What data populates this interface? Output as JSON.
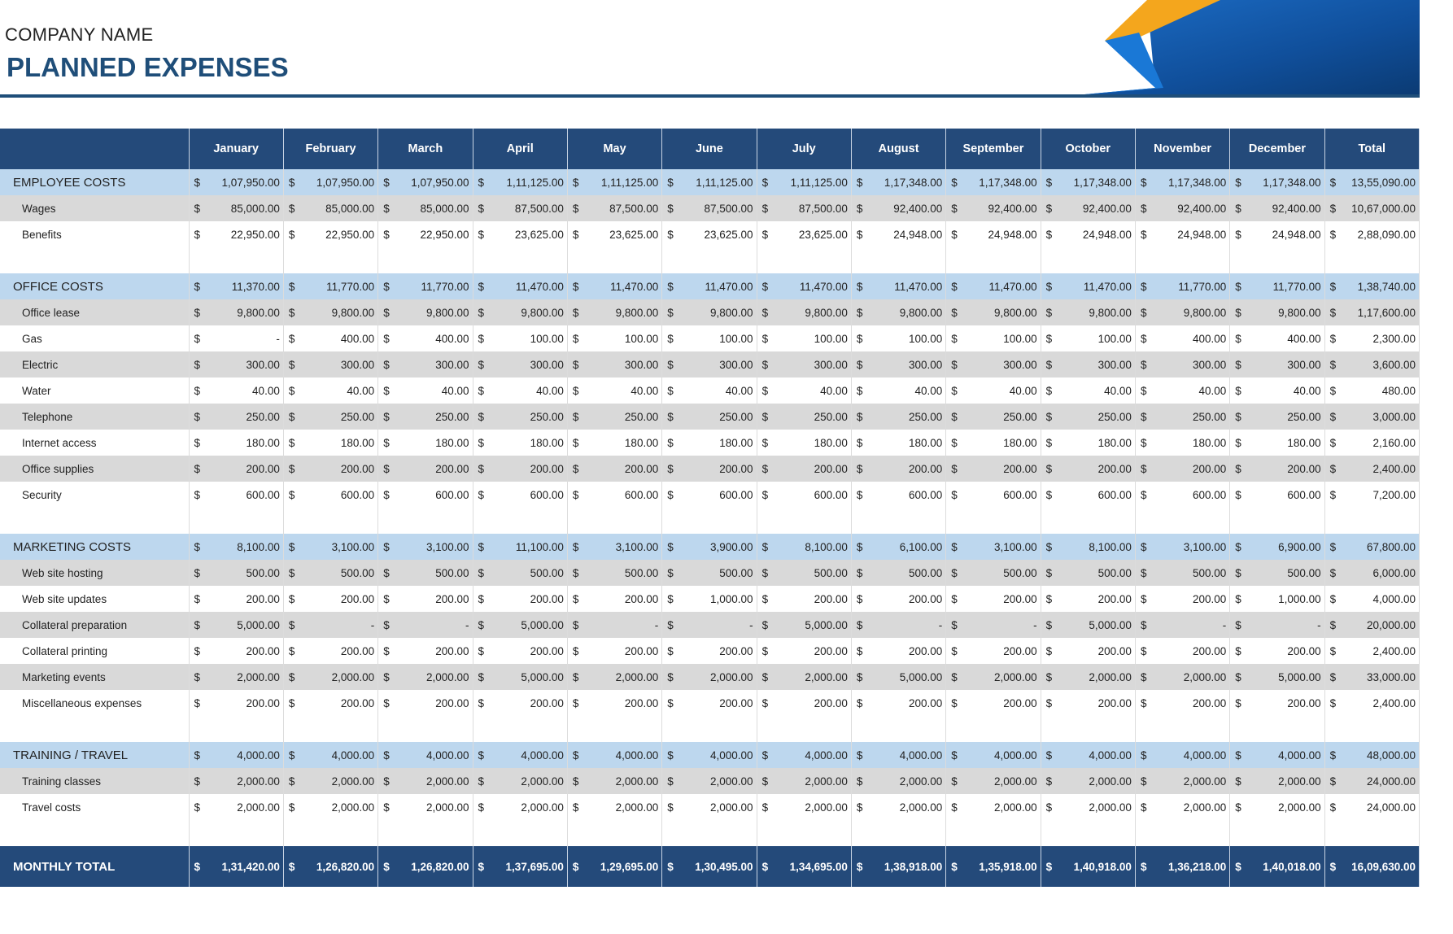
{
  "header": {
    "company": "COMPANY NAME",
    "title": "PLANNED EXPENSES"
  },
  "table": {
    "currency": "$",
    "columns": [
      "January",
      "February",
      "March",
      "April",
      "May",
      "June",
      "July",
      "August",
      "September",
      "October",
      "November",
      "December",
      "Total"
    ],
    "sections": [
      {
        "name": "EMPLOYEE COSTS",
        "values": [
          "1,07,950.00",
          "1,07,950.00",
          "1,07,950.00",
          "1,11,125.00",
          "1,11,125.00",
          "1,11,125.00",
          "1,11,125.00",
          "1,17,348.00",
          "1,17,348.00",
          "1,17,348.00",
          "1,17,348.00",
          "1,17,348.00",
          "13,55,090.00"
        ],
        "rows": [
          {
            "label": "Wages",
            "values": [
              "85,000.00",
              "85,000.00",
              "85,000.00",
              "87,500.00",
              "87,500.00",
              "87,500.00",
              "87,500.00",
              "92,400.00",
              "92,400.00",
              "92,400.00",
              "92,400.00",
              "92,400.00",
              "10,67,000.00"
            ]
          },
          {
            "label": "Benefits",
            "values": [
              "22,950.00",
              "22,950.00",
              "22,950.00",
              "23,625.00",
              "23,625.00",
              "23,625.00",
              "23,625.00",
              "24,948.00",
              "24,948.00",
              "24,948.00",
              "24,948.00",
              "24,948.00",
              "2,88,090.00"
            ]
          }
        ]
      },
      {
        "name": "OFFICE COSTS",
        "values": [
          "11,370.00",
          "11,770.00",
          "11,770.00",
          "11,470.00",
          "11,470.00",
          "11,470.00",
          "11,470.00",
          "11,470.00",
          "11,470.00",
          "11,470.00",
          "11,770.00",
          "11,770.00",
          "1,38,740.00"
        ],
        "rows": [
          {
            "label": "Office lease",
            "values": [
              "9,800.00",
              "9,800.00",
              "9,800.00",
              "9,800.00",
              "9,800.00",
              "9,800.00",
              "9,800.00",
              "9,800.00",
              "9,800.00",
              "9,800.00",
              "9,800.00",
              "9,800.00",
              "1,17,600.00"
            ]
          },
          {
            "label": "Gas",
            "values": [
              "-",
              "400.00",
              "400.00",
              "100.00",
              "100.00",
              "100.00",
              "100.00",
              "100.00",
              "100.00",
              "100.00",
              "400.00",
              "400.00",
              "2,300.00"
            ]
          },
          {
            "label": "Electric",
            "values": [
              "300.00",
              "300.00",
              "300.00",
              "300.00",
              "300.00",
              "300.00",
              "300.00",
              "300.00",
              "300.00",
              "300.00",
              "300.00",
              "300.00",
              "3,600.00"
            ]
          },
          {
            "label": "Water",
            "values": [
              "40.00",
              "40.00",
              "40.00",
              "40.00",
              "40.00",
              "40.00",
              "40.00",
              "40.00",
              "40.00",
              "40.00",
              "40.00",
              "40.00",
              "480.00"
            ]
          },
          {
            "label": "Telephone",
            "values": [
              "250.00",
              "250.00",
              "250.00",
              "250.00",
              "250.00",
              "250.00",
              "250.00",
              "250.00",
              "250.00",
              "250.00",
              "250.00",
              "250.00",
              "3,000.00"
            ]
          },
          {
            "label": "Internet access",
            "values": [
              "180.00",
              "180.00",
              "180.00",
              "180.00",
              "180.00",
              "180.00",
              "180.00",
              "180.00",
              "180.00",
              "180.00",
              "180.00",
              "180.00",
              "2,160.00"
            ]
          },
          {
            "label": "Office supplies",
            "values": [
              "200.00",
              "200.00",
              "200.00",
              "200.00",
              "200.00",
              "200.00",
              "200.00",
              "200.00",
              "200.00",
              "200.00",
              "200.00",
              "200.00",
              "2,400.00"
            ]
          },
          {
            "label": "Security",
            "values": [
              "600.00",
              "600.00",
              "600.00",
              "600.00",
              "600.00",
              "600.00",
              "600.00",
              "600.00",
              "600.00",
              "600.00",
              "600.00",
              "600.00",
              "7,200.00"
            ]
          }
        ]
      },
      {
        "name": "MARKETING COSTS",
        "values": [
          "8,100.00",
          "3,100.00",
          "3,100.00",
          "11,100.00",
          "3,100.00",
          "3,900.00",
          "8,100.00",
          "6,100.00",
          "3,100.00",
          "8,100.00",
          "3,100.00",
          "6,900.00",
          "67,800.00"
        ],
        "rows": [
          {
            "label": "Web site hosting",
            "values": [
              "500.00",
              "500.00",
              "500.00",
              "500.00",
              "500.00",
              "500.00",
              "500.00",
              "500.00",
              "500.00",
              "500.00",
              "500.00",
              "500.00",
              "6,000.00"
            ]
          },
          {
            "label": "Web site updates",
            "values": [
              "200.00",
              "200.00",
              "200.00",
              "200.00",
              "200.00",
              "1,000.00",
              "200.00",
              "200.00",
              "200.00",
              "200.00",
              "200.00",
              "1,000.00",
              "4,000.00"
            ]
          },
          {
            "label": "Collateral preparation",
            "values": [
              "5,000.00",
              "-",
              "-",
              "5,000.00",
              "-",
              "-",
              "5,000.00",
              "-",
              "-",
              "5,000.00",
              "-",
              "-",
              "20,000.00"
            ]
          },
          {
            "label": "Collateral printing",
            "values": [
              "200.00",
              "200.00",
              "200.00",
              "200.00",
              "200.00",
              "200.00",
              "200.00",
              "200.00",
              "200.00",
              "200.00",
              "200.00",
              "200.00",
              "2,400.00"
            ]
          },
          {
            "label": "Marketing events",
            "values": [
              "2,000.00",
              "2,000.00",
              "2,000.00",
              "5,000.00",
              "2,000.00",
              "2,000.00",
              "2,000.00",
              "5,000.00",
              "2,000.00",
              "2,000.00",
              "2,000.00",
              "5,000.00",
              "33,000.00"
            ]
          },
          {
            "label": "Miscellaneous expenses",
            "values": [
              "200.00",
              "200.00",
              "200.00",
              "200.00",
              "200.00",
              "200.00",
              "200.00",
              "200.00",
              "200.00",
              "200.00",
              "200.00",
              "200.00",
              "2,400.00"
            ]
          }
        ]
      },
      {
        "name": "TRAINING / TRAVEL",
        "values": [
          "4,000.00",
          "4,000.00",
          "4,000.00",
          "4,000.00",
          "4,000.00",
          "4,000.00",
          "4,000.00",
          "4,000.00",
          "4,000.00",
          "4,000.00",
          "4,000.00",
          "4,000.00",
          "48,000.00"
        ],
        "rows": [
          {
            "label": "Training classes",
            "values": [
              "2,000.00",
              "2,000.00",
              "2,000.00",
              "2,000.00",
              "2,000.00",
              "2,000.00",
              "2,000.00",
              "2,000.00",
              "2,000.00",
              "2,000.00",
              "2,000.00",
              "2,000.00",
              "24,000.00"
            ]
          },
          {
            "label": "Travel costs",
            "values": [
              "2,000.00",
              "2,000.00",
              "2,000.00",
              "2,000.00",
              "2,000.00",
              "2,000.00",
              "2,000.00",
              "2,000.00",
              "2,000.00",
              "2,000.00",
              "2,000.00",
              "2,000.00",
              "24,000.00"
            ]
          }
        ]
      }
    ],
    "total": {
      "label": "MONTHLY TOTAL",
      "values": [
        "1,31,420.00",
        "1,26,820.00",
        "1,26,820.00",
        "1,37,695.00",
        "1,29,695.00",
        "1,30,495.00",
        "1,34,695.00",
        "1,38,918.00",
        "1,35,918.00",
        "1,40,918.00",
        "1,36,218.00",
        "1,40,018.00",
        "16,09,630.00"
      ]
    }
  }
}
